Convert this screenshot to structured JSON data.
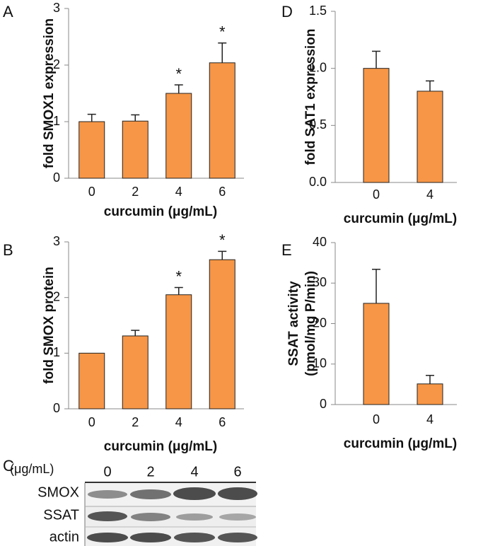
{
  "chart_data": [
    {
      "type": "bar",
      "label": "A",
      "y_label": [
        "fold SMOX1 expression"
      ],
      "x_label": "curcumin (μg/mL)",
      "categories": [
        "0",
        "2",
        "4",
        "6"
      ],
      "values": [
        1.0,
        1.01,
        1.5,
        2.04
      ],
      "errors": [
        0.13,
        0.11,
        0.15,
        0.35
      ],
      "color": "#f79646",
      "ylim": [
        0,
        3
      ],
      "yticks": [
        0,
        1,
        2,
        3
      ],
      "annotations": [
        {
          "x": "4",
          "text": "*"
        },
        {
          "x": "6",
          "text": "*"
        }
      ]
    },
    {
      "type": "bar",
      "label": "B",
      "y_label": [
        "fold SMOX protein"
      ],
      "x_label": "curcumin (μg/mL)",
      "categories": [
        "0",
        "2",
        "4",
        "6"
      ],
      "values": [
        1.0,
        1.31,
        2.05,
        2.68
      ],
      "errors": [
        null,
        0.1,
        0.13,
        0.15
      ],
      "color": "#f79646",
      "ylim": [
        0,
        3
      ],
      "yticks": [
        0,
        1,
        2,
        3
      ],
      "annotations": [
        {
          "x": "4",
          "text": "*"
        },
        {
          "x": "6",
          "text": "*"
        }
      ]
    },
    {
      "type": "bar",
      "label": "D",
      "y_label": [
        "fold SAT1 expression"
      ],
      "x_label": "curcumin (μg/mL)",
      "categories": [
        "0",
        "4"
      ],
      "values": [
        1.0,
        0.8
      ],
      "errors": [
        0.15,
        0.09
      ],
      "color": "#f79646",
      "ylim": [
        0,
        1.5
      ],
      "yticks": [
        {
          "value": 0,
          "label": "0.0"
        },
        0.5,
        {
          "value": 1,
          "label": "1.0"
        },
        1.5
      ]
    },
    {
      "type": "bar",
      "label": "E",
      "y_label": [
        "SSAT activity",
        "(pmol/mg P/min)"
      ],
      "x_label": "curcumin (μg/mL)",
      "categories": [
        "0",
        "4"
      ],
      "values": [
        25,
        5.1
      ],
      "errors": [
        8.4,
        2.1
      ],
      "color": "#f79646",
      "ylim": [
        0,
        40
      ],
      "yticks": [
        0,
        10,
        20,
        30,
        40
      ]
    }
  ],
  "blot": {
    "label": "C",
    "unit": "(μg/mL)",
    "lanes": [
      "0",
      "2",
      "4",
      "6"
    ],
    "rows": [
      "SMOX",
      "SSAT",
      "actin"
    ]
  }
}
